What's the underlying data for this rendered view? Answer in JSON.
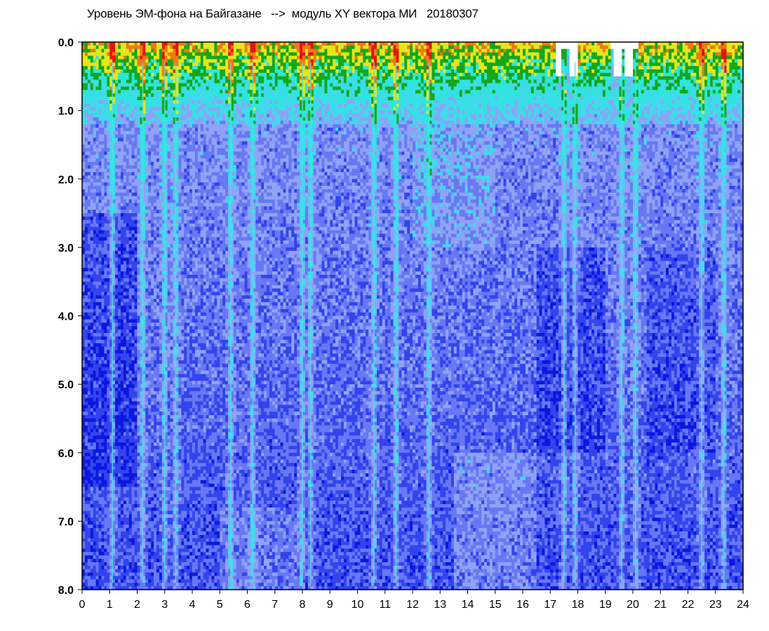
{
  "chart_data": {
    "type": "heatmap",
    "title": "Уровень ЭМ-фона на Байгазане   -->  модуль XY вектора МИ   20180307",
    "xlabel": "",
    "ylabel": "",
    "xlim": [
      0,
      24
    ],
    "ylim": [
      8.0,
      0.0
    ],
    "y_axis_inverted": true,
    "x_ticks": [
      "0",
      "1",
      "2",
      "3",
      "4",
      "5",
      "6",
      "7",
      "8",
      "9",
      "10",
      "11",
      "12",
      "13",
      "14",
      "15",
      "16",
      "17",
      "18",
      "19",
      "20",
      "21",
      "22",
      "23",
      "24"
    ],
    "y_ticks": [
      "0.0",
      "1.0",
      "2.0",
      "3.0",
      "4.0",
      "5.0",
      "6.0",
      "7.0",
      "8.0"
    ],
    "grid": false,
    "legend": "none",
    "colormap": [
      "#0a18e0",
      "#3344ee",
      "#6878f4",
      "#8fa2f6",
      "#42d8ee",
      "#2ce6dc",
      "#14a81c",
      "#e6e61a",
      "#ee7a10",
      "#e61414"
    ],
    "background_level": "blue",
    "high_activity_band": {
      "y_from": 0.0,
      "y_to": 1.2,
      "hours": [
        [
          0,
          12.5
        ],
        [
          12.5,
          17.3
        ],
        [
          18.0,
          19.2
        ],
        [
          20.2,
          24
        ]
      ]
    },
    "spikes_hours": [
      1.1,
      2.2,
      3.0,
      3.4,
      5.4,
      6.2,
      8.0,
      8.3,
      10.6,
      11.4,
      12.6,
      17.5,
      17.9,
      19.6,
      20.1,
      22.5,
      23.3
    ]
  }
}
